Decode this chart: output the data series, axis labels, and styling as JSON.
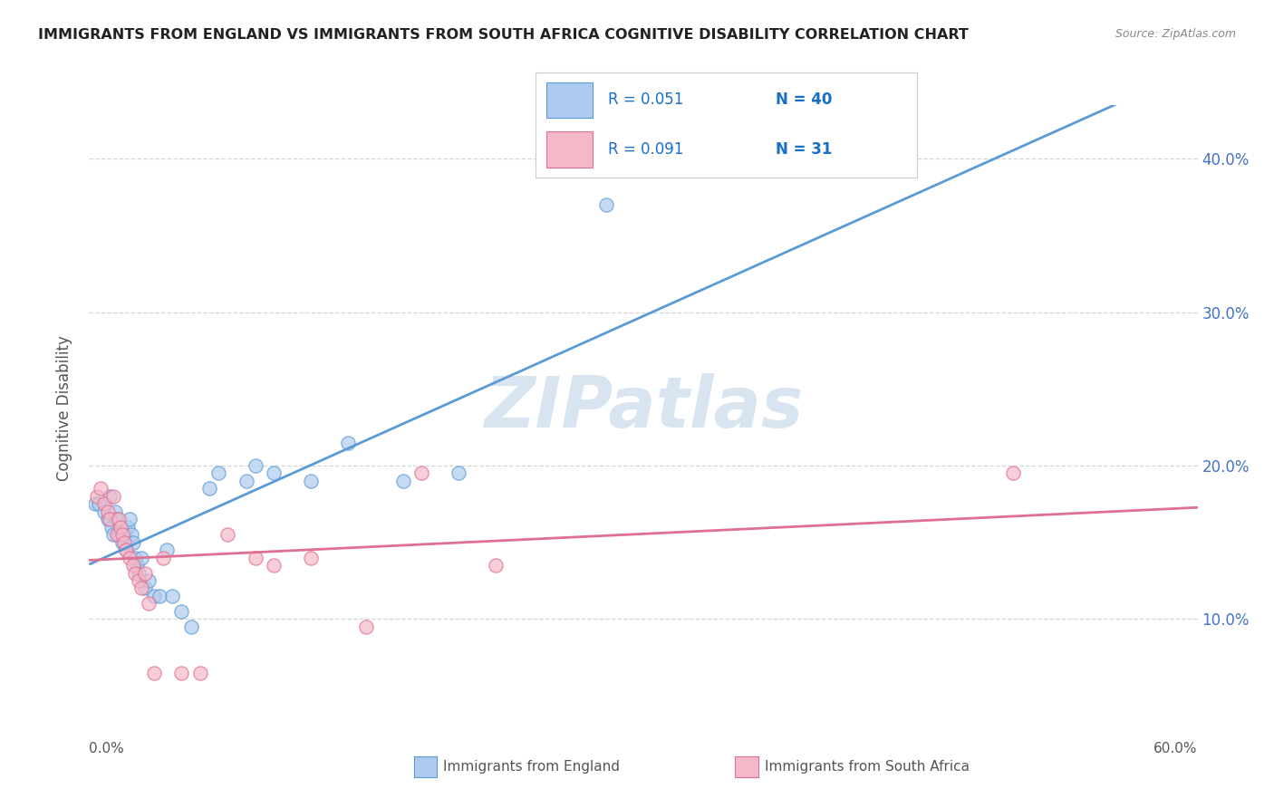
{
  "title": "IMMIGRANTS FROM ENGLAND VS IMMIGRANTS FROM SOUTH AFRICA COGNITIVE DISABILITY CORRELATION CHART",
  "source_text": "Source: ZipAtlas.com",
  "ylabel": "Cognitive Disability",
  "legend_england": "Immigrants from England",
  "legend_south_africa": "Immigrants from South Africa",
  "R_england": 0.051,
  "N_england": 40,
  "R_south_africa": 0.091,
  "N_south_africa": 31,
  "england_color": "#aecbef",
  "england_edge_color": "#5b9bd5",
  "england_line_color": "#5b9bd5",
  "south_africa_color": "#f5b8c8",
  "south_africa_edge_color": "#e07090",
  "south_africa_line_color": "#e07090",
  "xmin": 0.0,
  "xmax": 0.6,
  "ymin": 0.04,
  "ymax": 0.435,
  "right_yticks": [
    0.1,
    0.2,
    0.3,
    0.4
  ],
  "right_yticklabels": [
    "10.0%",
    "20.0%",
    "30.0%",
    "40.0%"
  ],
  "england_scatter_x": [
    0.003,
    0.005,
    0.008,
    0.01,
    0.011,
    0.012,
    0.013,
    0.014,
    0.015,
    0.016,
    0.017,
    0.018,
    0.019,
    0.02,
    0.021,
    0.022,
    0.023,
    0.024,
    0.025,
    0.026,
    0.027,
    0.028,
    0.03,
    0.032,
    0.035,
    0.038,
    0.042,
    0.045,
    0.05,
    0.055,
    0.065,
    0.07,
    0.085,
    0.09,
    0.1,
    0.12,
    0.14,
    0.17,
    0.2,
    0.28
  ],
  "england_scatter_y": [
    0.175,
    0.175,
    0.17,
    0.165,
    0.18,
    0.16,
    0.155,
    0.17,
    0.165,
    0.155,
    0.16,
    0.15,
    0.155,
    0.145,
    0.16,
    0.165,
    0.155,
    0.15,
    0.14,
    0.135,
    0.13,
    0.14,
    0.12,
    0.125,
    0.115,
    0.115,
    0.145,
    0.115,
    0.105,
    0.095,
    0.185,
    0.195,
    0.19,
    0.2,
    0.195,
    0.19,
    0.215,
    0.19,
    0.195,
    0.37
  ],
  "south_africa_scatter_x": [
    0.004,
    0.006,
    0.008,
    0.01,
    0.011,
    0.013,
    0.015,
    0.016,
    0.017,
    0.018,
    0.019,
    0.02,
    0.022,
    0.024,
    0.025,
    0.027,
    0.028,
    0.03,
    0.032,
    0.035,
    0.04,
    0.05,
    0.06,
    0.075,
    0.09,
    0.1,
    0.12,
    0.15,
    0.18,
    0.22,
    0.5
  ],
  "south_africa_scatter_y": [
    0.18,
    0.185,
    0.175,
    0.17,
    0.165,
    0.18,
    0.155,
    0.165,
    0.16,
    0.155,
    0.15,
    0.145,
    0.14,
    0.135,
    0.13,
    0.125,
    0.12,
    0.13,
    0.11,
    0.065,
    0.14,
    0.065,
    0.065,
    0.155,
    0.14,
    0.135,
    0.14,
    0.095,
    0.195,
    0.135,
    0.195
  ],
  "bg_color": "#ffffff",
  "grid_color": "#cccccc",
  "watermark_text": "ZIPatlas",
  "watermark_color": "#d8e4f0",
  "title_color": "#222222",
  "axis_label_color": "#555555",
  "tick_color": "#4472c4",
  "legend_R_color": "#1a6fc4",
  "legend_N_color": "#1a6fc4"
}
